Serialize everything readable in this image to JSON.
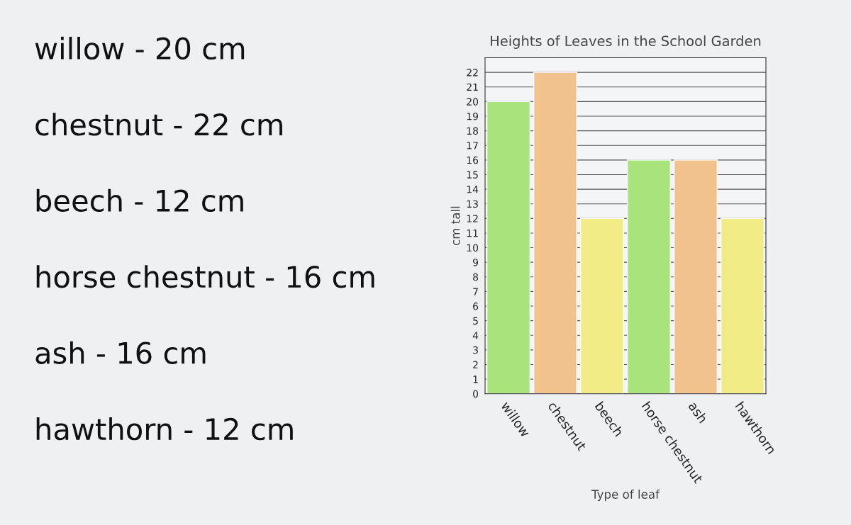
{
  "chart_data": {
    "type": "bar",
    "title": "Heights of Leaves in the School Garden",
    "xlabel": "Type of leaf",
    "ylabel": "cm tall",
    "categories": [
      "willow",
      "chestnut",
      "beech",
      "horse chestnut",
      "ash",
      "hawthorn"
    ],
    "values": [
      20,
      22,
      12,
      16,
      16,
      12
    ],
    "colors": [
      "#a8e37c",
      "#f2c28e",
      "#f1ec86",
      "#a8e37c",
      "#f2c28e",
      "#f1ec86"
    ],
    "ylim": [
      0,
      23
    ],
    "yticks": [
      0,
      1,
      2,
      3,
      4,
      5,
      6,
      7,
      8,
      9,
      10,
      11,
      12,
      13,
      14,
      15,
      16,
      17,
      18,
      19,
      20,
      21,
      22
    ],
    "grid": "y",
    "legend": false,
    "annotations": [
      "willow - 20 cm",
      "chestnut - 22 cm",
      "beech - 12 cm",
      "horse chestnut - 16 cm",
      "ash - 16 cm",
      "hawthorn - 12 cm"
    ]
  }
}
